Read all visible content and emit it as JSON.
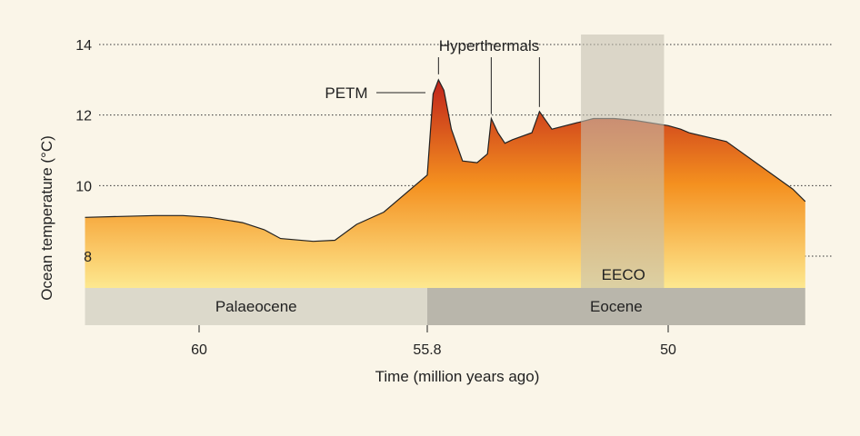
{
  "chart_data": {
    "type": "area",
    "title": "",
    "xlabel": "Time (million years ago)",
    "ylabel": "Ocean temperature (°C)",
    "x_ticks": [
      {
        "value": 60,
        "label": "60"
      },
      {
        "value": 55.8,
        "label": "55.8"
      },
      {
        "value": 50,
        "label": "50"
      }
    ],
    "y_ticks": [
      {
        "value": 14,
        "label": "14"
      },
      {
        "value": 12,
        "label": "12"
      },
      {
        "value": 10,
        "label": "10"
      },
      {
        "value": 8,
        "label": "8"
      }
    ],
    "gridlines": "dotted horizontal at y ticks",
    "x_scale_note": "x axis is not linear across the Palaeocene/Eocene boundary",
    "series": [
      {
        "x": [
          62.1,
          60.8,
          60.3,
          59.8,
          59.2,
          58.8,
          58.5,
          57.9,
          57.5,
          57.1,
          56.6,
          55.8,
          55.66,
          55.53,
          55.4,
          55.22,
          54.95,
          54.6,
          54.35,
          54.26,
          54.1,
          53.93,
          53.75,
          53.28,
          53.1,
          52.8,
          51.8,
          51.3,
          50.8,
          50.0,
          49.7,
          49.5,
          48.6,
          47.0,
          46.7
        ],
        "y": [
          9.1,
          9.15,
          9.15,
          9.1,
          8.95,
          8.75,
          8.5,
          8.42,
          8.45,
          8.9,
          9.25,
          10.3,
          12.6,
          13.0,
          12.7,
          11.6,
          10.7,
          10.65,
          10.9,
          11.9,
          11.5,
          11.2,
          11.3,
          11.5,
          12.1,
          11.6,
          11.9,
          11.9,
          11.85,
          11.7,
          11.6,
          11.5,
          11.25,
          9.9,
          9.55
        ]
      }
    ],
    "ylim": [
      7.1,
      14.3
    ],
    "annotations": [
      {
        "label": "PETM",
        "x": 55.53,
        "y": 13.0
      },
      {
        "label": "Hyperthermals",
        "x": [
          54.26,
          53.1
        ]
      }
    ],
    "highlight_band": {
      "label": "EECO",
      "x_range": [
        52.1,
        50.1
      ]
    },
    "eras": [
      {
        "label": "Palaeocene",
        "x_range": [
          62.1,
          55.8
        ]
      },
      {
        "label": "Eocene",
        "x_range": [
          55.8,
          46.7
        ]
      }
    ],
    "colors": {
      "background": "#faf5e8",
      "fill_top": "#c0231b",
      "fill_mid": "#f4901f",
      "fill_bottom": "#fde88f",
      "band": "#c4c0b2",
      "palaeocene_bar": "#dcd9cb",
      "eocene_bar": "#b9b6ab",
      "line": "#222222"
    }
  }
}
